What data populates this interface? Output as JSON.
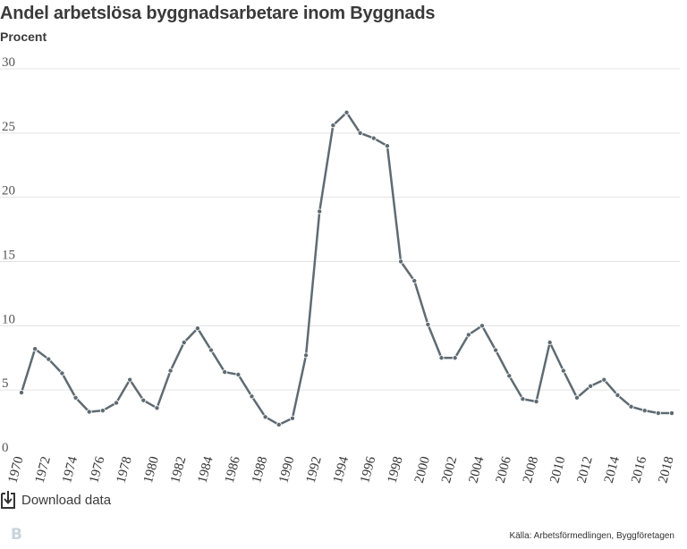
{
  "title": "Andel arbetslösa byggnadsarbetare inom Byggnads",
  "subtitle": "Procent",
  "download_label": "Download data",
  "source": "Källa: Arbetsförmedlingen, Byggföretagen",
  "logo": "B",
  "colors": {
    "line": "#5f6b73",
    "grid": "#e3e3e3",
    "text": "#333333"
  },
  "chart_data": {
    "type": "line",
    "title": "Andel arbetslösa byggnadsarbetare inom Byggnads",
    "ylabel": "Procent",
    "xlabel": "",
    "ylim": [
      0,
      30
    ],
    "yticks": [
      0,
      5,
      10,
      15,
      20,
      25,
      30
    ],
    "x": [
      1970,
      1971,
      1972,
      1973,
      1974,
      1975,
      1976,
      1977,
      1978,
      1979,
      1980,
      1981,
      1982,
      1983,
      1984,
      1985,
      1986,
      1987,
      1988,
      1989,
      1990,
      1991,
      1992,
      1993,
      1994,
      1995,
      1996,
      1997,
      1998,
      1999,
      2000,
      2001,
      2002,
      2003,
      2004,
      2005,
      2006,
      2007,
      2008,
      2009,
      2010,
      2011,
      2012,
      2013,
      2014,
      2015,
      2016,
      2017,
      2018
    ],
    "xticks": [
      1970,
      1972,
      1974,
      1976,
      1978,
      1980,
      1982,
      1984,
      1986,
      1988,
      1990,
      1992,
      1994,
      1996,
      1998,
      2000,
      2002,
      2004,
      2006,
      2008,
      2010,
      2012,
      2014,
      2016,
      2018
    ],
    "series": [
      {
        "values": [
          4.8,
          8.2,
          7.4,
          6.3,
          4.4,
          3.3,
          3.4,
          4.0,
          5.8,
          4.2,
          3.6,
          6.5,
          8.7,
          9.8,
          8.1,
          6.4,
          6.2,
          4.5,
          2.9,
          2.3,
          2.8,
          7.7,
          18.9,
          25.6,
          26.6,
          25.0,
          24.6,
          24.0,
          15.0,
          13.5,
          10.1,
          7.5,
          7.5,
          9.3,
          10.0,
          8.1,
          6.1,
          4.3,
          4.1,
          8.7,
          6.5,
          4.4,
          5.3,
          5.8,
          4.6,
          3.7,
          3.4,
          3.2,
          3.2
        ]
      }
    ],
    "grid": true,
    "markers": true
  }
}
